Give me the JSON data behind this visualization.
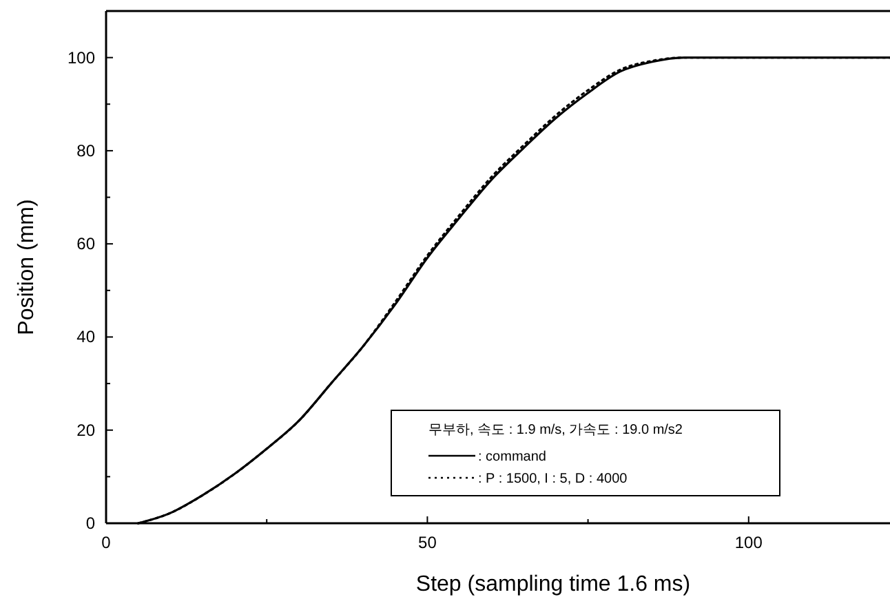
{
  "chart_data": {
    "type": "line",
    "xlabel": "Step (sampling time 1.6 ms)",
    "ylabel": "Position (mm)",
    "legend_title": "무부하, 속도 : 1.9 m/s, 가속도 : 19.0 m/s2",
    "legend": "bottom right",
    "grid": false,
    "xlim": [
      0,
      122
    ],
    "ylim": [
      0,
      110
    ],
    "xticks": [
      0,
      {
        "value": 25,
        "label": null
      },
      50,
      {
        "value": 75,
        "label": null
      },
      100
    ],
    "yticks": [
      0,
      {
        "value": 10,
        "label": null
      },
      20,
      {
        "value": 30,
        "label": null
      },
      40,
      {
        "value": 50,
        "label": null
      },
      60,
      {
        "value": 70,
        "label": null
      },
      80,
      {
        "value": 90,
        "label": null
      },
      100
    ],
    "series": [
      {
        "name": ": command",
        "color": "#000000",
        "line_style": "solid",
        "x": [
          5,
          10,
          15,
          20,
          25,
          30,
          35,
          40,
          45,
          50,
          55,
          60,
          65,
          70,
          75,
          80,
          85,
          90,
          95,
          100,
          122
        ],
        "values": [
          0,
          2.2,
          6,
          10.6,
          16,
          22,
          30,
          38,
          47,
          57,
          65.6,
          73.8,
          80.6,
          87,
          92.4,
          97,
          99.1,
          100,
          100,
          100,
          100
        ]
      },
      {
        "name": ": P : 1500, I : 5, D : 4000",
        "color": "#000000",
        "line_style": "dotted",
        "x": [
          5,
          10,
          15,
          20,
          25,
          30,
          35,
          40,
          45,
          50,
          55,
          60,
          65,
          70,
          75,
          80,
          85,
          90,
          95,
          100,
          122
        ],
        "values": [
          0,
          2.2,
          6,
          10.6,
          16,
          22,
          30,
          38,
          47.5,
          57.5,
          66.2,
          74.4,
          81.2,
          87.6,
          93,
          97.4,
          99.3,
          100,
          100,
          100,
          100
        ]
      }
    ]
  }
}
